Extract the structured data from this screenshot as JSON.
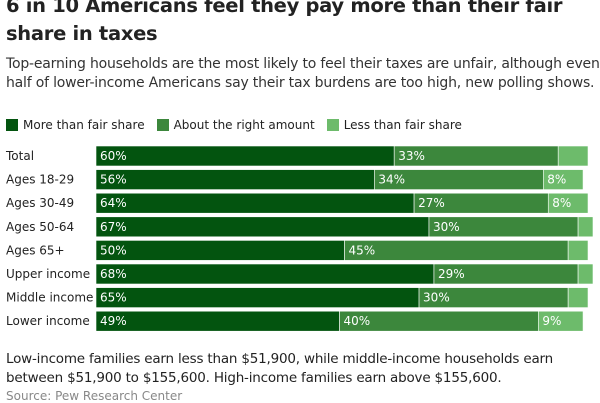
{
  "title": "6 in 10 Americans feel they pay more than their fair share in taxes",
  "subtitle": "Top-earning households are the most likely to feel their taxes are unfair, although even half of lower-income Americans say their tax burdens are too high, new polling shows.",
  "note": "Low-income families earn less than $51,900, while middle-income households earn between $51,900 to $155,600. High-income families earn above $155,600.",
  "source": "Source: Pew Research Center",
  "chart_data": {
    "type": "bar",
    "orientation": "horizontal",
    "stacked": true,
    "categories": [
      "Total",
      "Ages 18-29",
      "Ages 30-49",
      "Ages 50-64",
      "Ages 65+",
      "Upper income",
      "Middle income",
      "Lower income"
    ],
    "series": [
      {
        "name": "More than fair share",
        "color": "#03540f",
        "values": [
          60,
          56,
          64,
          67,
          50,
          68,
          65,
          49
        ],
        "labels": [
          "60%",
          "56%",
          "64%",
          "67%",
          "50%",
          "68%",
          "65%",
          "49%"
        ]
      },
      {
        "name": "About the right amount",
        "color": "#3c873c",
        "values": [
          33,
          34,
          27,
          30,
          45,
          29,
          30,
          40
        ],
        "labels": [
          "33%",
          "34%",
          "27%",
          "30%",
          "45%",
          "29%",
          "30%",
          "40%"
        ]
      },
      {
        "name": "Less than fair share",
        "color": "#6dbb6b",
        "values": [
          6,
          8,
          8,
          3,
          4,
          3,
          4,
          9
        ],
        "labels": [
          "",
          "8%",
          "8%",
          "",
          "",
          "",
          "",
          "9%"
        ]
      }
    ],
    "xlim": [
      0,
      100
    ],
    "legend_position": "top-left",
    "grid": false
  }
}
